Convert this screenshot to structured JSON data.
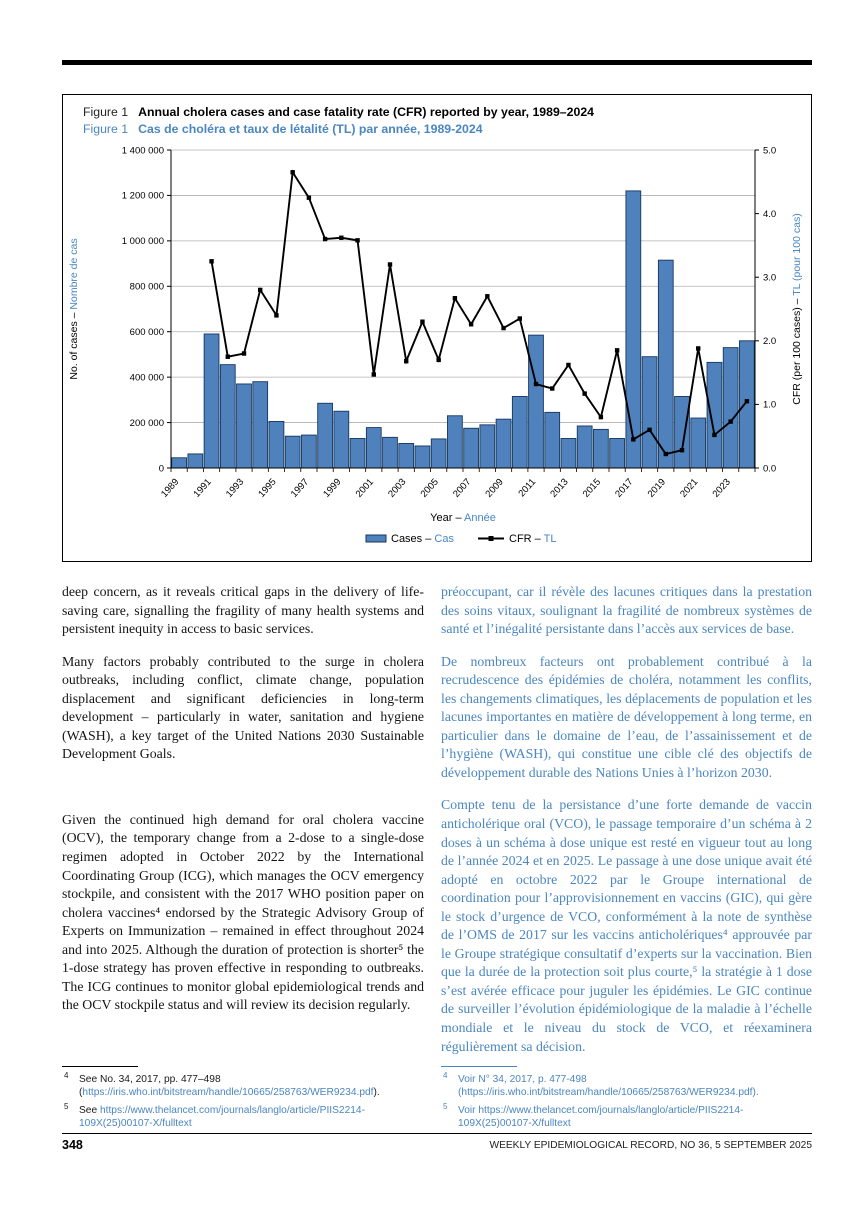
{
  "page": {
    "page_number": "348",
    "footer_text": "WEEKLY EPIDEMIOLOGICAL RECORD, NO 36, 5 SEPTEMBER 2025"
  },
  "figure": {
    "label_en": "Figure 1",
    "title_en": "Annual cholera cases and case fatality rate (CFR) reported by year, 1989–2024",
    "label_fr": "Figure 1",
    "title_fr": "Cas de choléra et taux de létalité (TL) par année, 1989-2024"
  },
  "chart_data": {
    "type": "bar",
    "title": "Annual cholera cases and case fatality rate (CFR) reported by year, 1989–2024",
    "title_fr": "Cas de choléra et taux de létalité (TL) par année, 1989-2024",
    "categories": [
      1989,
      1990,
      1991,
      1992,
      1993,
      1994,
      1995,
      1996,
      1997,
      1998,
      1999,
      2000,
      2001,
      2002,
      2003,
      2004,
      2005,
      2006,
      2007,
      2008,
      2009,
      2010,
      2011,
      2012,
      2013,
      2014,
      2015,
      2016,
      2017,
      2018,
      2019,
      2020,
      2021,
      2022,
      2023,
      2024
    ],
    "series": [
      {
        "name": "Cases – Cas",
        "type": "bar",
        "axis": "left",
        "values": [
          45000,
          62000,
          590000,
          455000,
          370000,
          380000,
          205000,
          140000,
          145000,
          285000,
          250000,
          130000,
          178000,
          135000,
          108000,
          97000,
          128000,
          230000,
          175000,
          190000,
          215000,
          315000,
          585000,
          245000,
          130000,
          185000,
          170000,
          130000,
          1220000,
          490000,
          915000,
          315000,
          220000,
          465000,
          530000,
          560000
        ]
      },
      {
        "name": "CFR – TL",
        "type": "line",
        "axis": "right",
        "values": [
          null,
          null,
          3.25,
          1.75,
          1.8,
          2.8,
          2.4,
          4.65,
          4.25,
          3.6,
          3.62,
          3.58,
          1.47,
          3.2,
          1.68,
          2.3,
          1.7,
          2.67,
          2.26,
          2.7,
          2.2,
          2.35,
          1.32,
          1.25,
          1.62,
          1.17,
          0.8,
          1.85,
          0.45,
          0.6,
          0.22,
          0.28,
          1.88,
          0.52,
          0.73,
          1.05
        ]
      }
    ],
    "left_axis": {
      "title_en": "No. of cases – ",
      "title_fr": "Nombre de cas",
      "min": 0,
      "max": 1400000,
      "step": 200000,
      "tick_labels": [
        "0",
        "200 000",
        "400 000",
        "600 000",
        "800 000",
        "1 000 000",
        "1 200 000",
        "1 400 000"
      ]
    },
    "right_axis": {
      "title_en": "CFR (per 100 cases) – ",
      "title_fr": "TL (pour 100 cas)",
      "min": 0,
      "max": 5,
      "step": 1,
      "tick_labels": [
        "0.0",
        "1.0",
        "2.0",
        "3.0",
        "4.0",
        "5.0"
      ]
    },
    "x_axis": {
      "label_en": "Year – ",
      "label_fr": "Année",
      "tick_years": [
        1989,
        1991,
        1993,
        1995,
        1997,
        1999,
        2001,
        2003,
        2005,
        2007,
        2009,
        2011,
        2013,
        2015,
        2017,
        2019,
        2021,
        2023
      ]
    },
    "legend": [
      {
        "label_en": "Cases – ",
        "label_fr": "Cas",
        "swatch": "bar"
      },
      {
        "label_en": "CFR – ",
        "label_fr": "TL",
        "swatch": "line"
      }
    ],
    "legend_position": "bottom",
    "grid": true,
    "colors": {
      "bar_fill": "#4f81bd",
      "bar_stroke": "#17375e",
      "line": "#000000",
      "french_blue": "#4a86c0",
      "grid": "#b0b0b0"
    }
  },
  "body": {
    "english": {
      "paragraphs": [
        "deep concern, as it reveals critical gaps in the delivery of life-saving care, signalling the fragility of many health systems and persistent inequity in access to basic services.",
        "Many factors probably contributed to the surge in cholera outbreaks, including conflict, climate change, population displacement and significant deficiencies in long-term development – particularly in water, sanitation and hygiene (WASH), a key target of the United Nations 2030 Sustainable Development Goals.",
        "Given the continued high demand for oral cholera vaccine (OCV), the temporary change from a 2-dose to a single-dose regimen adopted in October 2022 by the International Coordinating Group (ICG), which manages the OCV emergency stockpile, and consistent with the 2017 WHO position paper on cholera vaccines⁴ endorsed by the Strategic Advisory Group of Experts on Immunization – remained in effect throughout 2024 and into 2025. Although the duration of protection is shorter⁵ the 1-dose strategy has proven effective in responding to outbreaks. The ICG continues to monitor global epidemiological trends and the OCV stockpile status and will review its decision regularly."
      ]
    },
    "french": {
      "paragraphs": [
        "préoccupant, car il révèle des lacunes critiques dans la prestation des soins vitaux, soulignant la fragilité de nombreux systèmes de santé et l’inégalité persistante dans l’accès aux services de base.",
        "De nombreux facteurs ont probablement contribué à la recrudescence des épidémies de choléra, notamment les conflits, les changements climatiques, les déplacements de population et les lacunes importantes en matière de développement à long terme, en particulier dans le domaine de l’eau, de l’assainissement et de l’hygiène (WASH), qui constitue une cible clé des objectifs de développement durable des Nations Unies à l’horizon 2030.",
        "Compte tenu de la persistance d’une forte demande de vaccin anticholérique oral (VCO), le passage temporaire d’un schéma à 2 doses à un schéma à dose unique est resté en vigueur tout au long de l’année 2024 et en 2025. Le passage à une dose unique avait été adopté en octobre 2022 par le Groupe international de coordination pour l’approvisionnement en vaccins (GIC), qui gère le stock d’urgence de VCO, conformément à la note de synthèse de l’OMS de 2017 sur les vaccins anticholériques⁴ approuvée par le Groupe stratégique consultatif d’experts sur la vaccination. Bien que la durée de la protection soit plus courte,⁵ la stratégie à 1 dose s’est avérée efficace pour juguler les épidémies. Le GIC continue de surveiller l’évolution épidémiologique de la maladie à l’échelle mondiale et le niveau du stock de VCO, et réexaminera régulièrement sa décision."
      ]
    }
  },
  "footnotes": {
    "english": [
      {
        "marker": "4",
        "pre": "See No. 34, 2017, pp. 477–498 (",
        "link": "https://iris.who.int/bitstream/handle/10665/258763/WER9234.pdf",
        "post": ")."
      },
      {
        "marker": "5",
        "pre": "See ",
        "link": "https://www.thelancet.com/journals/langlo/article/PIIS2214-109X(25)00107-X/fulltext",
        "post": ""
      }
    ],
    "french": [
      {
        "marker": "4",
        "pre": "Voir N° 34, 2017, p. 477-498 (",
        "link": "https://iris.who.int/bitstream/handle/10665/258763/WER9234.pdf",
        "post": ")."
      },
      {
        "marker": "5",
        "pre": "Voir ",
        "link": "https://www.thelancet.com/journals/langlo/article/PIIS2214-109X(25)00107-X/fulltext",
        "post": ""
      }
    ]
  }
}
